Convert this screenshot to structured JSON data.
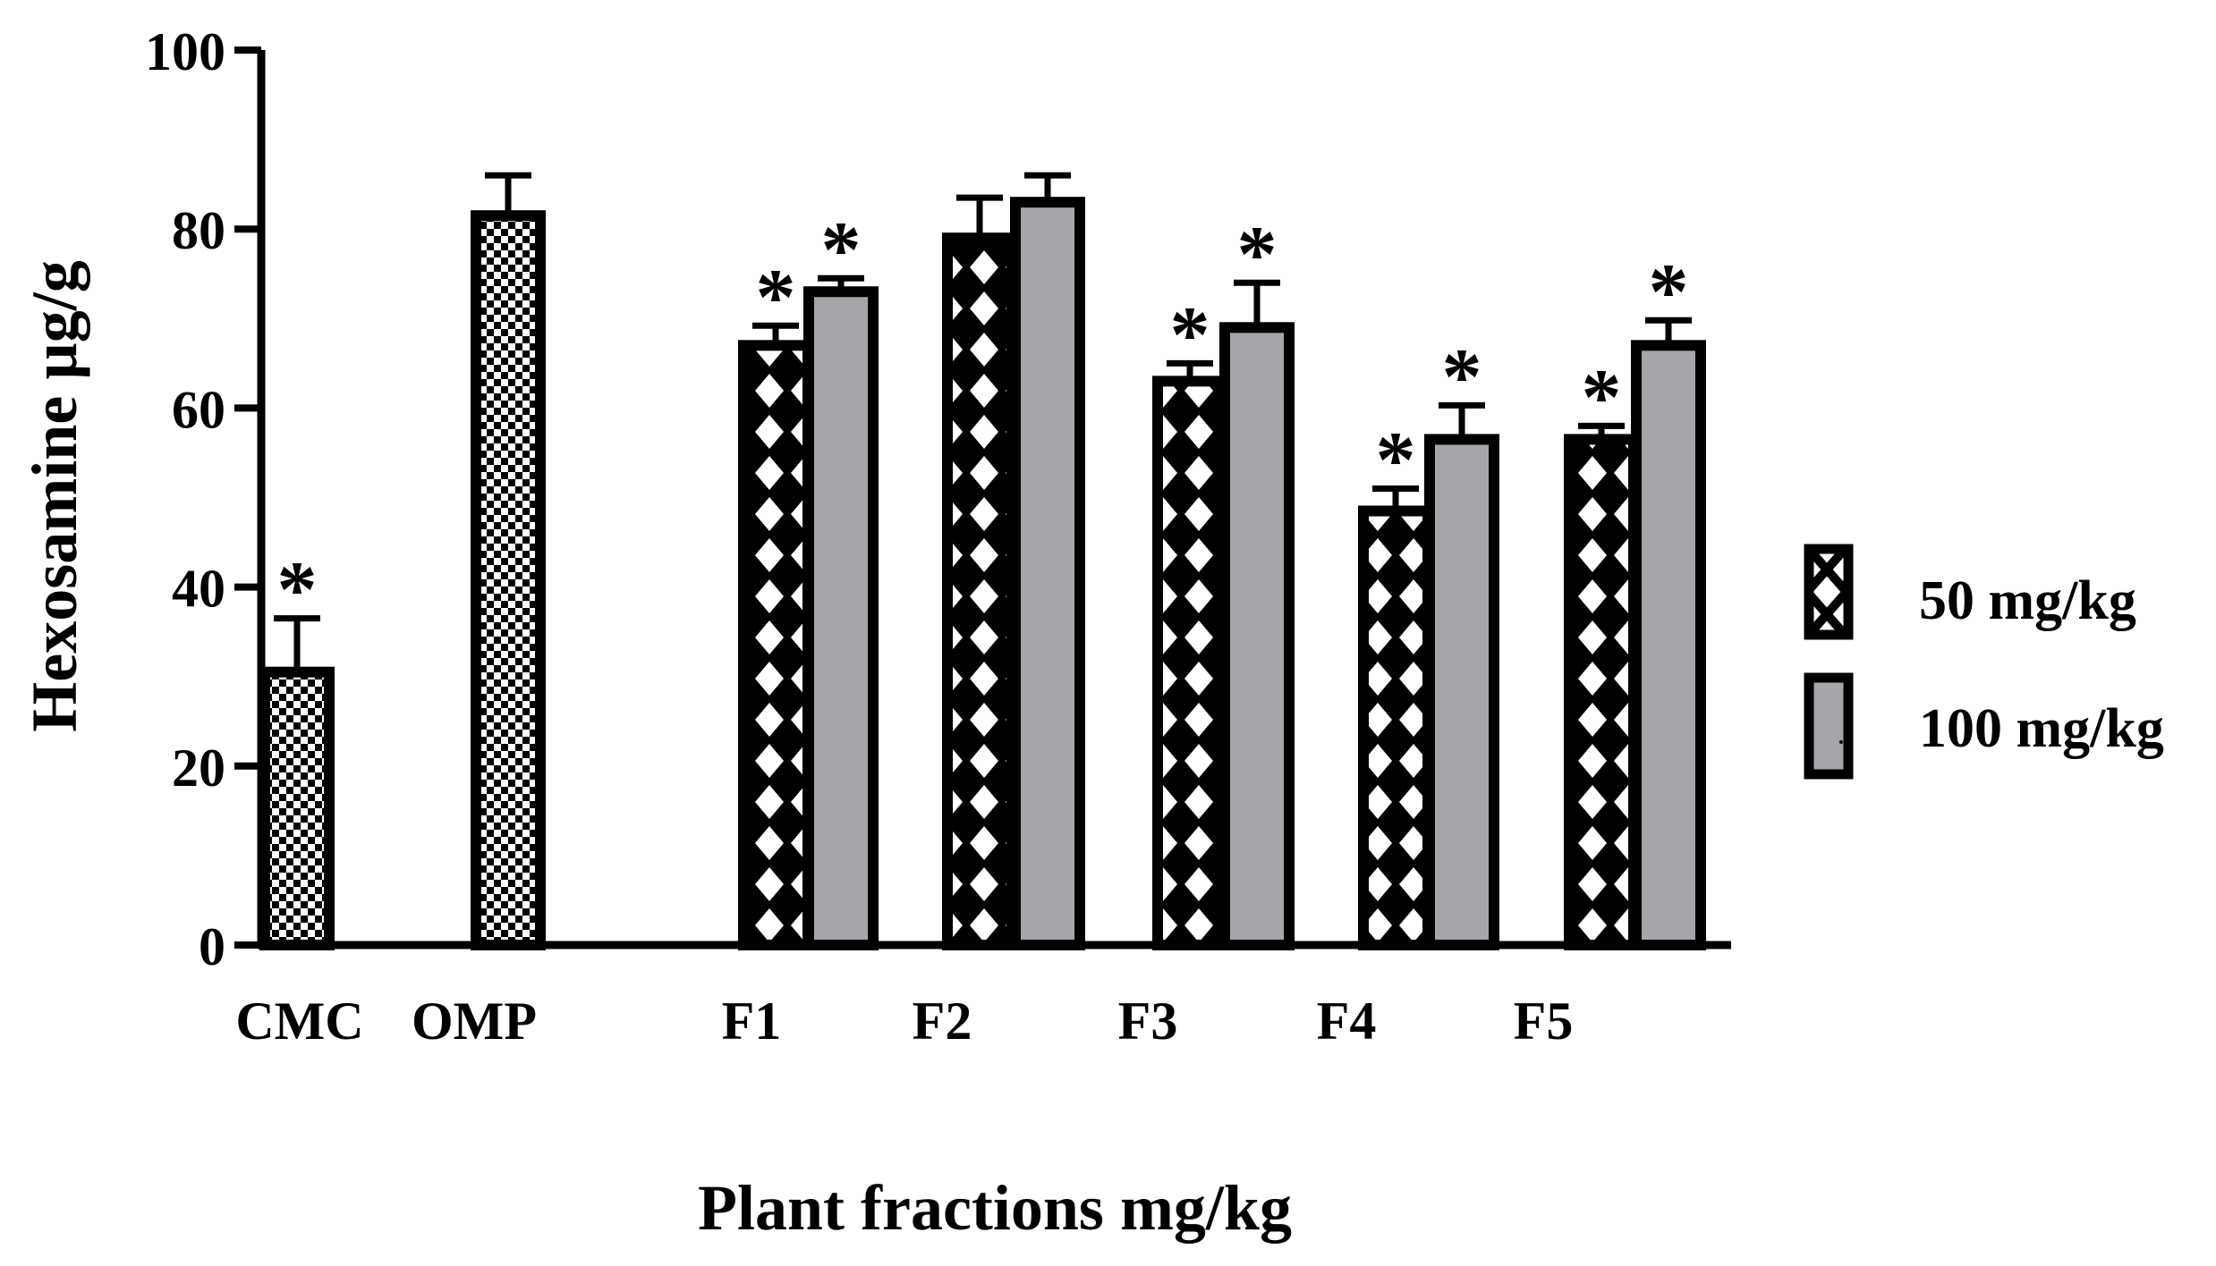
{
  "chart_data": {
    "type": "bar",
    "title": "",
    "xlabel": "Plant fractions mg/kg",
    "ylabel": "Hexosamine µg/g",
    "ylim": [
      0,
      100
    ],
    "yticks": [
      0,
      20,
      40,
      60,
      80,
      100
    ],
    "tick_labels": [
      "0",
      "20",
      "40",
      "60",
      "80",
      "100"
    ],
    "grid": false,
    "legend_position": "right",
    "categories": [
      "CMC",
      "OMP",
      "F1",
      "F2",
      "F3",
      "F4",
      "F5"
    ],
    "controls": [
      {
        "category": "CMC",
        "value": 30.5,
        "error": 6.0,
        "significant": true
      },
      {
        "category": "OMP",
        "value": 81.5,
        "error": 4.5,
        "significant": false
      }
    ],
    "series": [
      {
        "name": "50 mg/kg",
        "pattern": "crosshatch",
        "values": [
          null,
          null,
          67,
          79,
          63,
          48.5,
          56.5
        ],
        "errors": [
          null,
          null,
          2.2,
          4.5,
          2.0,
          2.5,
          1.5
        ],
        "significant": [
          false,
          false,
          true,
          false,
          true,
          true,
          true
        ]
      },
      {
        "name": "100 mg/kg",
        "pattern": "gray",
        "values": [
          null,
          null,
          73,
          83,
          69,
          56.5,
          67
        ],
        "errors": [
          null,
          null,
          1.5,
          3.0,
          5.0,
          3.8,
          2.8
        ],
        "significant": [
          false,
          false,
          true,
          false,
          true,
          true,
          true
        ]
      }
    ],
    "annotation_symbol": "*",
    "colors": {
      "bar_outline": "#000000",
      "gray_fill": "#a6a6aa",
      "axis": "#000000"
    }
  }
}
